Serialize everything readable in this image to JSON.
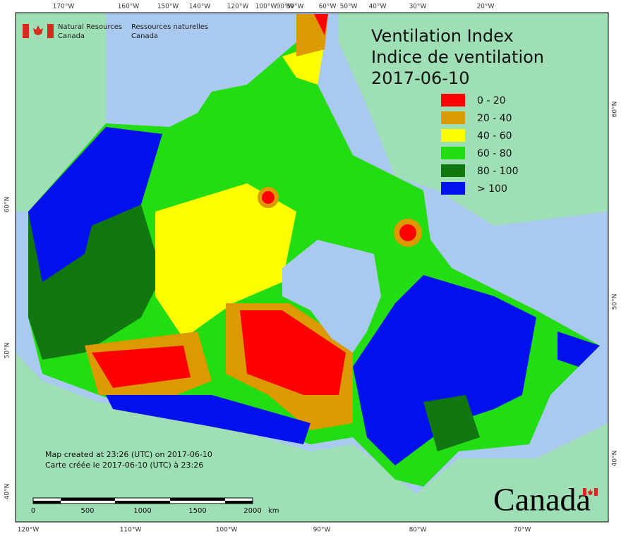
{
  "header": {
    "agency_en": "Natural Resources",
    "agency_en_2": "Canada",
    "agency_fr": "Ressources naturelles",
    "agency_fr_2": "Canada"
  },
  "title": {
    "line1": "Ventilation Index",
    "line2": "Indice de ventilation",
    "date": "2017-06-10"
  },
  "legend": [
    {
      "label": "0 - 20",
      "color": "#ff0000"
    },
    {
      "label": "20 - 40",
      "color": "#dd9900"
    },
    {
      "label": "40 - 60",
      "color": "#ffff00"
    },
    {
      "label": "60 - 80",
      "color": "#22dd11"
    },
    {
      "label": "80 - 100",
      "color": "#117711"
    },
    {
      "label": "> 100",
      "color": "#0011ee"
    }
  ],
  "credits": [
    "Map created at 23:26 (UTC) on 2017-06-10",
    "Carte créée le 2017-06-10 (UTC) à 23:26"
  ],
  "scale": {
    "labels": [
      "0",
      "500",
      "1000",
      "1500",
      "2000"
    ],
    "unit": "km"
  },
  "graticule": {
    "top": [
      "170°W",
      "160°W",
      "150°W",
      "140°W",
      "120°W",
      "100°W",
      "90°W",
      "80°W",
      "60°W",
      "50°W",
      "40°W",
      "30°W",
      "20°W"
    ],
    "bottom": [
      "120°W",
      "110°W",
      "100°W",
      "90°W",
      "80°W",
      "70°W"
    ],
    "left": [
      "60°N",
      "50°N",
      "40°N"
    ],
    "right": [
      "60°N",
      "50°N",
      "40°N"
    ]
  },
  "wordmark": "Canada"
}
